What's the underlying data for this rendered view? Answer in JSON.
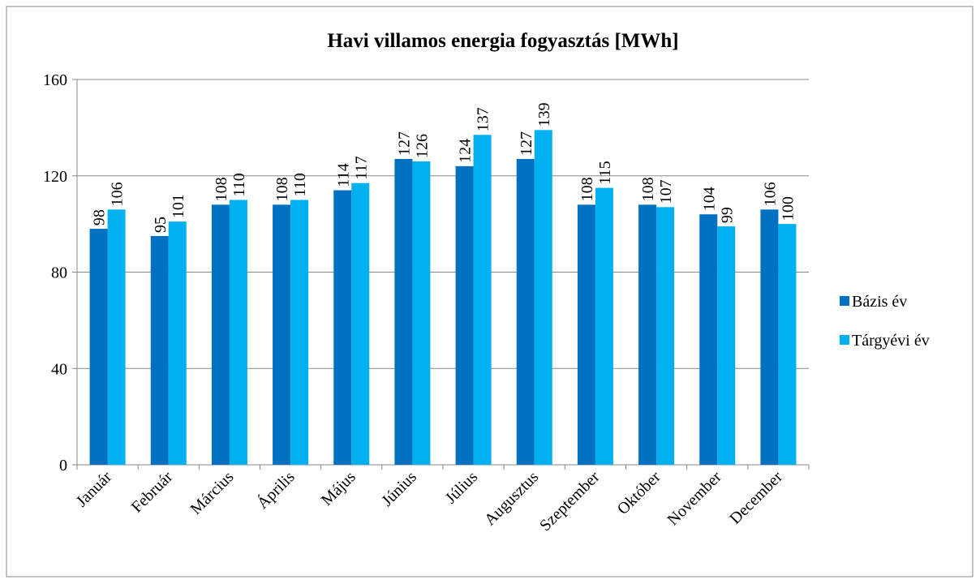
{
  "chart_data": {
    "type": "bar",
    "title": "Havi villamos energia fogyasztás [MWh]",
    "categories": [
      "Január",
      "Február",
      "Március",
      "Április",
      "Május",
      "Június",
      "Július",
      "Augusztus",
      "Szeptember",
      "Október",
      "November",
      "December"
    ],
    "series": [
      {
        "name": "Bázis év",
        "color": "#0070c0",
        "values": [
          98,
          95,
          108,
          108,
          114,
          127,
          124,
          127,
          108,
          108,
          104,
          106
        ]
      },
      {
        "name": "Tárgyévi év",
        "color": "#00b0f0",
        "values": [
          106,
          101,
          110,
          110,
          117,
          126,
          137,
          139,
          115,
          107,
          99,
          100
        ]
      }
    ],
    "ylim": [
      0,
      160
    ],
    "yticks": [
      0,
      40,
      80,
      120,
      160
    ],
    "grid": true,
    "legend": "right"
  }
}
